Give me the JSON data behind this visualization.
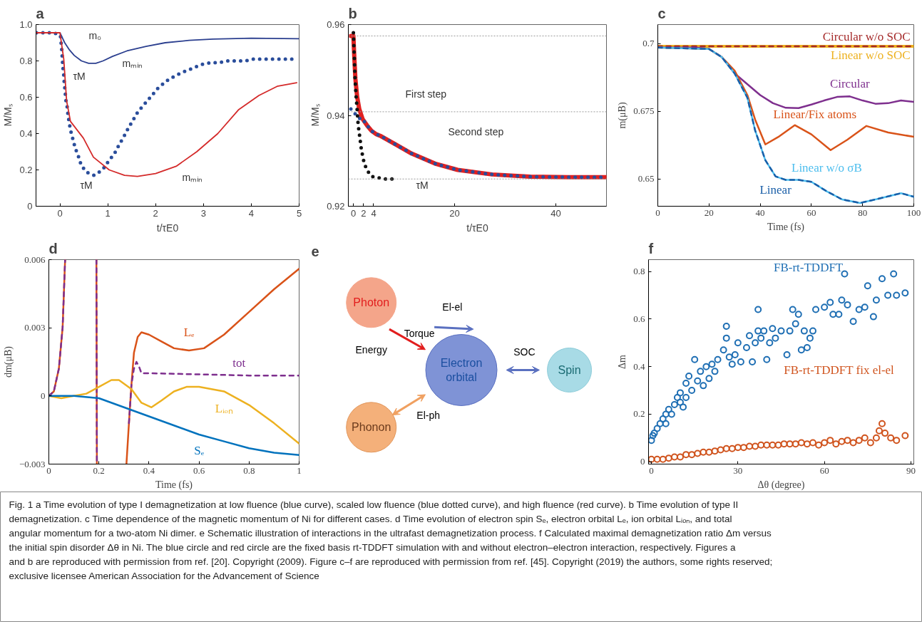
{
  "chart_data": [
    {
      "type": "line",
      "title": "a",
      "xlabel": "t/τE0",
      "ylabel": "M/Mₛ",
      "xlim": [
        -0.5,
        5
      ],
      "ylim": [
        0,
        1
      ],
      "xticks": [
        0,
        1,
        2,
        3,
        4,
        5
      ],
      "yticks": [
        0,
        0.2,
        0.4,
        0.6,
        0.8,
        {
          "value": 1,
          "label": "1.0"
        }
      ],
      "series": [
        {
          "color": "#2b3f8f",
          "line_style": "solid",
          "x": [
            -0.5,
            0,
            0.1,
            0.2,
            0.3,
            0.45,
            0.6,
            0.75,
            0.9,
            1.1,
            1.4,
            1.8,
            2.2,
            2.7,
            3.2,
            4,
            5
          ],
          "values": [
            0.955,
            0.955,
            0.9,
            0.86,
            0.83,
            0.8,
            0.787,
            0.787,
            0.8,
            0.825,
            0.855,
            0.88,
            0.9,
            0.913,
            0.92,
            0.925,
            0.922
          ]
        },
        {
          "color": "#2a4d9b",
          "line_style": "dotted",
          "x": [
            -0.49,
            -0.31,
            -0.13,
            0.01,
            0.04,
            0.05,
            0.06,
            0.08,
            0.09,
            0.11,
            0.12,
            0.15,
            0.17,
            0.2,
            0.23,
            0.27,
            0.32,
            0.38,
            0.44,
            0.54,
            0.71,
            0.89,
            1.02,
            1.14,
            1.24,
            1.33,
            1.43,
            1.52,
            1.63,
            1.76,
            1.89,
            2.05,
            2.23,
            2.42,
            2.59,
            2.78,
            2.96,
            3.15,
            3.32,
            3.51,
            3.7,
            3.88,
            4.05,
            4.24,
            4.43,
            4.61,
            4.8,
            4.95
          ],
          "values": [
            0.955,
            0.955,
            0.955,
            0.94,
            0.857,
            0.81,
            0.77,
            0.72,
            0.68,
            0.63,
            0.59,
            0.55,
            0.5,
            0.45,
            0.41,
            0.37,
            0.32,
            0.28,
            0.23,
            0.19,
            0.17,
            0.2,
            0.25,
            0.29,
            0.34,
            0.38,
            0.43,
            0.47,
            0.52,
            0.56,
            0.6,
            0.65,
            0.69,
            0.72,
            0.74,
            0.76,
            0.78,
            0.79,
            0.79,
            0.8,
            0.8,
            0.8,
            0.81,
            0.81,
            0.81,
            0.81,
            0.81,
            0.81
          ]
        },
        {
          "color": "#d42a2a",
          "line_style": "solid",
          "x": [
            -0.5,
            0,
            0.08,
            0.14,
            0.22,
            0.49,
            0.7,
            1.03,
            1.35,
            1.62,
            2,
            2.43,
            2.86,
            3.3,
            3.73,
            4.16,
            4.54,
            4.95
          ],
          "values": [
            0.955,
            0.955,
            0.81,
            0.58,
            0.467,
            0.375,
            0.27,
            0.2,
            0.17,
            0.164,
            0.18,
            0.22,
            0.3,
            0.4,
            0.53,
            0.61,
            0.66,
            0.68
          ]
        }
      ],
      "annotations": [
        "m₀",
        "mₘᵢₙ",
        "τM",
        "τM",
        "mₘᵢₙ"
      ]
    },
    {
      "type": "line",
      "title": "b",
      "xlabel": "t/τE0",
      "ylabel": "M/Mₛ",
      "xlim": [
        -1,
        50
      ],
      "ylim": [
        0.92,
        0.96
      ],
      "xticks": [
        0,
        2,
        4,
        20,
        40
      ],
      "yticks": [
        0.92,
        0.94,
        0.96
      ],
      "series": [
        {
          "color": "#e02020",
          "line_style": "solid",
          "x": [
            -0.5,
            0,
            0.18,
            0.4,
            0.73,
            1.16,
            1.82,
            2.7,
            3.58,
            4.46,
            5.5,
            8.5,
            11.5,
            16.1,
            20.6,
            27.4,
            34.9,
            42.5,
            50
          ],
          "values": [
            0.9575,
            0.9575,
            0.9528,
            0.948,
            0.9442,
            0.9414,
            0.9392,
            0.9378,
            0.9366,
            0.9359,
            0.9354,
            0.9335,
            0.9316,
            0.9294,
            0.928,
            0.927,
            0.9265,
            0.9264,
            0.9264
          ]
        },
        {
          "color": "#2a4d9b",
          "line_style": "dotted",
          "x": [
            -0.5,
            0.13,
            0.73,
            1.38,
            1.82,
            2.7,
            3.58,
            4.46,
            5.5,
            8.5,
            11.5,
            16.1,
            20.6,
            27.4,
            34.9,
            42.5,
            50
          ],
          "values": [
            0.9414,
            0.9406,
            0.9399,
            0.9392,
            0.9392,
            0.9378,
            0.9366,
            0.9359,
            0.9354,
            0.9335,
            0.9316,
            0.9294,
            0.928,
            0.927,
            0.9265,
            0.9264,
            0.9264
          ]
        },
        {
          "color": "#111111",
          "line_style": "dotted",
          "x": [
            0,
            0.18,
            0.33,
            0.5,
            0.73,
            0.95,
            1.16,
            1.6,
            2.15,
            2.66,
            3.25,
            3.85,
            6.3,
            8.5
          ],
          "values": [
            0.9582,
            0.9528,
            0.948,
            0.9447,
            0.9414,
            0.9378,
            0.9361,
            0.9323,
            0.9294,
            0.9281,
            0.927,
            0.9265,
            0.926,
            0.926
          ]
        }
      ],
      "ref_lines": [
        {
          "axis": "y",
          "value": 0.9575,
          "color": "#999999",
          "line_style": "dotted"
        },
        {
          "axis": "y",
          "value": 0.9408,
          "color": "#999999",
          "line_style": "dotted"
        },
        {
          "axis": "y",
          "value": 0.926,
          "color": "#999999",
          "line_style": "dotted"
        }
      ],
      "annotations": [
        "First step",
        "Second step",
        "τM"
      ]
    },
    {
      "type": "line",
      "title": "c",
      "xlabel": "Time (fs)",
      "ylabel": "m(μB)",
      "xlim": [
        0,
        100
      ],
      "ylim": [
        0.64,
        0.707
      ],
      "xticks": [
        0,
        20,
        40,
        60,
        80,
        100
      ],
      "yticks": [
        0.65,
        0.675,
        0.7
      ],
      "series": [
        {
          "name": "Linear w/o SOC",
          "color": "#edb120",
          "line_style": "solid",
          "x": [
            0,
            100
          ],
          "values": [
            0.699,
            0.699
          ]
        },
        {
          "name": "Circular w/o SOC",
          "color": "#a52a2a",
          "line_style": "dashed",
          "x": [
            0,
            100
          ],
          "values": [
            0.699,
            0.699
          ]
        },
        {
          "name": "Circular",
          "color": "#7e2f8e",
          "line_style": "solid",
          "x": [
            0,
            15,
            20,
            25,
            30,
            35,
            40,
            45,
            50,
            55,
            60,
            65,
            70,
            75,
            80,
            85,
            90,
            95,
            100
          ],
          "values": [
            0.6985,
            0.6985,
            0.698,
            0.695,
            0.689,
            0.685,
            0.681,
            0.678,
            0.6763,
            0.6762,
            0.6775,
            0.679,
            0.6803,
            0.6805,
            0.679,
            0.6778,
            0.678,
            0.679,
            0.6785
          ]
        },
        {
          "name": "Linear/Fix atoms",
          "color": "#d95319",
          "line_style": "solid",
          "x": [
            0,
            20,
            25,
            30,
            35,
            38,
            42,
            47,
            53.5,
            60,
            67.5,
            74,
            81.5,
            90,
            100
          ],
          "values": [
            0.6985,
            0.698,
            0.695,
            0.69,
            0.681,
            0.672,
            0.6628,
            0.6655,
            0.6699,
            0.6665,
            0.6607,
            0.6645,
            0.6696,
            0.6672,
            0.6656
          ]
        },
        {
          "name": "Linear w/o σB",
          "color": "#4dbeee",
          "line_style": "solid",
          "x": [
            0,
            20,
            25,
            30,
            35,
            38,
            42,
            46,
            50,
            55,
            60,
            66,
            72,
            79,
            85,
            95,
            100
          ],
          "values": [
            0.6985,
            0.698,
            0.695,
            0.689,
            0.68,
            0.668,
            0.657,
            0.651,
            0.6497,
            0.6497,
            0.649,
            0.6455,
            0.6425,
            0.6412,
            0.6425,
            0.6448,
            0.6435
          ]
        },
        {
          "name": "Linear",
          "color": "#1a5fa8",
          "line_style": "dashed",
          "x": [
            0,
            20,
            25,
            30,
            35,
            38,
            42,
            46,
            50,
            55,
            60,
            66,
            72,
            79,
            85,
            95,
            100
          ],
          "values": [
            0.6985,
            0.698,
            0.695,
            0.689,
            0.68,
            0.668,
            0.657,
            0.651,
            0.6497,
            0.6497,
            0.649,
            0.6455,
            0.6425,
            0.6412,
            0.6425,
            0.6448,
            0.6435
          ]
        }
      ]
    },
    {
      "type": "line",
      "title": "d",
      "xlabel": "Time (fs)",
      "ylabel": "dm(μB)",
      "xlim": [
        0,
        1
      ],
      "ylim": [
        -0.003,
        0.006
      ],
      "xticks": [
        0,
        0.2,
        0.4,
        0.6,
        0.8,
        1
      ],
      "yticks": [
        {
          "value": -0.003,
          "label": "−0.003"
        },
        0,
        0.003,
        0.006
      ],
      "series": [
        {
          "name": "Lₑ",
          "color": "#d95319",
          "line_style": "solid",
          "x": [
            0,
            0.02,
            0.04,
            0.055,
            0.065,
            0.12,
            0.19,
            0.192,
            0.25,
            0.31,
            0.32,
            0.33,
            0.34,
            0.355,
            0.37,
            0.4,
            0.45,
            0.5,
            0.56,
            0.62,
            0.7,
            0.8,
            0.9,
            1
          ],
          "values": [
            0,
            0.0002,
            0.0012,
            0.003,
            0.006,
            null,
            0.006,
            -0.003,
            null,
            -0.003,
            -0.0012,
            0.0005,
            0.0019,
            0.0026,
            0.0028,
            0.0027,
            0.0024,
            0.0021,
            0.002,
            0.0021,
            0.0027,
            0.0037,
            0.0047,
            0.0056
          ]
        },
        {
          "name": "tot",
          "color": "#7e2f8e",
          "line_style": "dashed",
          "x": [
            0,
            0.02,
            0.04,
            0.055,
            0.065,
            0.12,
            0.19,
            0.192,
            0.25,
            0.32,
            0.33,
            0.34,
            0.35,
            0.36,
            0.37,
            0.4,
            0.6,
            0.8,
            1
          ],
          "values": [
            0,
            0.0002,
            0.0012,
            0.003,
            0.006,
            null,
            0.006,
            -0.003,
            null,
            -0.0012,
            0.0005,
            0.0012,
            0.0015,
            0.0013,
            0.001,
            0.001,
            0.00095,
            0.0009,
            0.0009
          ]
        },
        {
          "name": "Lᵢₒₙ",
          "color": "#edb120",
          "line_style": "solid",
          "x": [
            0,
            0.05,
            0.1,
            0.15,
            0.2,
            0.25,
            0.28,
            0.33,
            0.37,
            0.41,
            0.45,
            0.5,
            0.55,
            0.6,
            0.7,
            0.8,
            0.9,
            1
          ],
          "values": [
            0,
            -0.0001,
            0,
            0.0001,
            0.0004,
            0.0007,
            0.0007,
            0.0003,
            -0.0003,
            -0.0005,
            -0.0002,
            0.0002,
            0.0004,
            0.0004,
            0.0002,
            -0.0004,
            -0.0012,
            -0.0021
          ]
        },
        {
          "name": "Sₑ",
          "color": "#0072bd",
          "line_style": "solid",
          "x": [
            0,
            0.1,
            0.2,
            0.3,
            0.4,
            0.5,
            0.6,
            0.7,
            0.8,
            0.9,
            1
          ],
          "values": [
            0,
            0,
            -0.0001,
            -0.0005,
            -0.0009,
            -0.0013,
            -0.0017,
            -0.002,
            -0.0023,
            -0.0025,
            -0.0026
          ]
        }
      ]
    },
    {
      "type": "other",
      "title": "e",
      "annotations": [
        "Photon",
        "Torque",
        "Energy",
        "El-el",
        "Electron orbital",
        "SOC",
        "Spin",
        "Phonon",
        "El-ph"
      ]
    },
    {
      "type": "scatter",
      "title": "f",
      "xlabel": "Δθ (degree)",
      "ylabel": "Δm",
      "xlim": [
        -1,
        91
      ],
      "ylim": [
        -0.01,
        0.85
      ],
      "xticks": [
        0,
        30,
        60,
        90
      ],
      "yticks": [
        0,
        0.2,
        0.4,
        0.6,
        0.8
      ],
      "marker": "circle",
      "series": [
        {
          "name": "FB-rt-TDDFT",
          "color": "#1f6fb4",
          "x": [
            0,
            0.5,
            1,
            2,
            3,
            4,
            5,
            5,
            6,
            7,
            8,
            9,
            10,
            10,
            11,
            12,
            12,
            13,
            14,
            15,
            16,
            17,
            18,
            19,
            20,
            21,
            22,
            23,
            25,
            26,
            26,
            27,
            28,
            29,
            30,
            31,
            33,
            34,
            35,
            36,
            37,
            37,
            38,
            39,
            40,
            41,
            42,
            43,
            45,
            47,
            48,
            49,
            50,
            51,
            52,
            53,
            54,
            55,
            56,
            57,
            60,
            62,
            63,
            65,
            66,
            67,
            68,
            70,
            72,
            74,
            75,
            77,
            78,
            80,
            82,
            84,
            85,
            88
          ],
          "values": [
            0.09,
            0.11,
            0.12,
            0.14,
            0.16,
            0.18,
            0.2,
            0.16,
            0.22,
            0.2,
            0.24,
            0.27,
            0.29,
            0.25,
            0.23,
            0.27,
            0.33,
            0.36,
            0.3,
            0.43,
            0.34,
            0.38,
            0.32,
            0.4,
            0.35,
            0.41,
            0.38,
            0.43,
            0.47,
            0.52,
            0.57,
            0.44,
            0.41,
            0.45,
            0.5,
            0.42,
            0.48,
            0.53,
            0.42,
            0.5,
            0.64,
            0.55,
            0.52,
            0.55,
            0.43,
            0.5,
            0.56,
            0.52,
            0.55,
            0.45,
            0.55,
            0.64,
            0.58,
            0.62,
            0.47,
            0.55,
            0.48,
            0.52,
            0.55,
            0.64,
            0.65,
            0.67,
            0.62,
            0.62,
            0.68,
            0.79,
            0.66,
            0.59,
            0.64,
            0.65,
            0.74,
            0.61,
            0.68,
            0.77,
            0.7,
            0.79,
            0.7,
            0.71
          ]
        },
        {
          "name": "FB-rt-TDDFT fix el-el",
          "color": "#d0541e",
          "x": [
            0,
            2,
            4,
            6,
            8,
            10,
            12,
            14,
            16,
            18,
            20,
            22,
            24,
            26,
            28,
            30,
            32,
            34,
            36,
            38,
            40,
            42,
            44,
            46,
            48,
            50,
            52,
            54,
            56,
            58,
            60,
            62,
            64,
            66,
            68,
            70,
            72,
            74,
            76,
            78,
            79,
            80,
            81,
            83,
            85,
            88
          ],
          "values": [
            0.01,
            0.01,
            0.01,
            0.015,
            0.02,
            0.02,
            0.03,
            0.03,
            0.035,
            0.04,
            0.04,
            0.045,
            0.05,
            0.055,
            0.055,
            0.06,
            0.06,
            0.065,
            0.065,
            0.07,
            0.07,
            0.07,
            0.07,
            0.075,
            0.075,
            0.075,
            0.08,
            0.075,
            0.08,
            0.07,
            0.08,
            0.09,
            0.075,
            0.085,
            0.09,
            0.08,
            0.09,
            0.1,
            0.08,
            0.1,
            0.13,
            0.16,
            0.12,
            0.1,
            0.09,
            0.11
          ]
        }
      ]
    },
    {
      "type": "other",
      "annotations": [
        "Fig. 1 a Time evolution of type I demagnetization at low fluence (blue curve), scaled low fluence (blue dotted curve), and high fluence (red curve). b Time evolution of type II demagnetization. c Time dependence of the magnetic momentum of Ni for different cases. d Time evolution of electron spin Sₑ, electron orbital Lₑ, ion orbital Lᵢₒₙ, and total angular momentum for a two-atom Ni dimer. e Schematic illustration of interactions in the ultrafast demagnetization process. f Calculated maximal demagnetization ratio Δm versus the initial spin disorder Δθ in Ni. The blue circle and red circle are the fixed basis rt-TDDFT simulation with and without electron–electron interaction, respectively. Figures a and b are reproduced with permission from ref. [20]. Copyright (2009). Figure c–f are reproduced with permission from ref. [45]. Copyright (2019) the authors, some rights reserved; exclusive licensee American Association for the Advancement of Science"
      ]
    }
  ]
}
